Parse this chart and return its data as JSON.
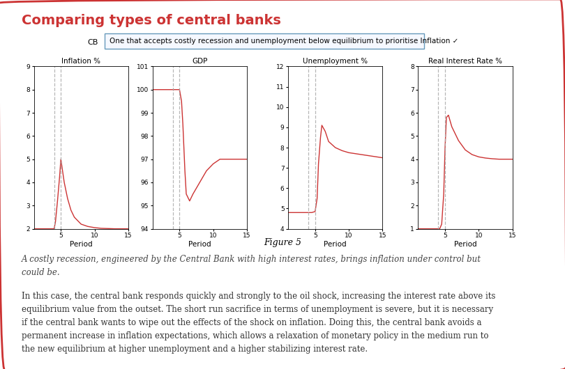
{
  "title": "Comparing types of central banks",
  "cb_label": "CB",
  "cb_dropdown_text": "One that accepts costly recession and unemployment below equilibrium to prioritise Inflation ✓",
  "figure_caption": "Figure 5",
  "italic_text": "A costly recession, engineered by the Central Bank with high interest rates, brings inflation under control but\ncould be.",
  "body_text": "In this case, the central bank responds quickly and strongly to the oil shock, increasing the interest rate above its\nequilibrium value from the outset. The short run sacrifice in terms of unemployment is severe, but it is necessary\nif the central bank wants to wipe out the effects of the shock on inflation. Doing this, the central bank avoids a\npermanent increase in inflation expectations, which allows a relaxation of monetary policy in the medium run to\nthe new equilibrium at higher unemployment and a higher stabilizing interest rate.",
  "charts": [
    {
      "title": "Inflation %",
      "xlabel": "Period",
      "ylim": [
        2,
        9
      ],
      "yticks": [
        2,
        3,
        4,
        5,
        6,
        7,
        8,
        9
      ],
      "xlim": [
        1,
        15
      ],
      "xticks": [
        5,
        10,
        15
      ],
      "vlines": [
        4,
        5
      ],
      "periods": [
        1,
        2,
        3,
        4,
        4.2,
        4.5,
        4.8,
        5.0,
        5.2,
        5.5,
        6,
        6.5,
        7,
        8,
        9,
        10,
        11,
        12,
        13,
        14,
        15
      ],
      "values": [
        2,
        2,
        2,
        2,
        2.3,
        3.2,
        4.2,
        5.0,
        4.6,
        4.0,
        3.3,
        2.8,
        2.5,
        2.2,
        2.1,
        2.05,
        2.02,
        2.01,
        2.0,
        2.0,
        2.0
      ]
    },
    {
      "title": "GDP",
      "xlabel": "Period",
      "ylim": [
        94,
        101
      ],
      "yticks": [
        94,
        95,
        96,
        97,
        98,
        99,
        100,
        101
      ],
      "xlim": [
        1,
        15
      ],
      "xticks": [
        5,
        10,
        15
      ],
      "vlines": [
        4,
        5
      ],
      "periods": [
        1,
        2,
        3,
        4,
        4.5,
        5.0,
        5.3,
        5.5,
        5.8,
        6,
        6.5,
        7,
        8,
        9,
        10,
        11,
        12,
        13,
        14,
        15
      ],
      "values": [
        100,
        100,
        100,
        100,
        100,
        100,
        99.5,
        98.5,
        96.5,
        95.5,
        95.2,
        95.5,
        96.0,
        96.5,
        96.8,
        97.0,
        97.0,
        97.0,
        97.0,
        97.0
      ]
    },
    {
      "title": "Unemployment %",
      "xlabel": "Period",
      "ylim": [
        4,
        12
      ],
      "yticks": [
        4,
        5,
        6,
        7,
        8,
        9,
        10,
        11,
        12
      ],
      "xlim": [
        1,
        15
      ],
      "xticks": [
        5,
        10,
        15
      ],
      "vlines": [
        4,
        5
      ],
      "periods": [
        1,
        2,
        3,
        4,
        4.5,
        5.0,
        5.3,
        5.5,
        5.8,
        6,
        6.5,
        7,
        8,
        9,
        10,
        11,
        12,
        13,
        14,
        15
      ],
      "values": [
        4.8,
        4.8,
        4.8,
        4.8,
        4.8,
        4.85,
        5.5,
        7.2,
        8.5,
        9.1,
        8.8,
        8.3,
        8.0,
        7.85,
        7.75,
        7.7,
        7.65,
        7.6,
        7.55,
        7.5
      ]
    },
    {
      "title": "Real Interest Rate %",
      "xlabel": "Period",
      "ylim": [
        1,
        8
      ],
      "yticks": [
        1,
        2,
        3,
        4,
        5,
        6,
        7,
        8
      ],
      "xlim": [
        1,
        15
      ],
      "xticks": [
        5,
        10,
        15
      ],
      "vlines": [
        4,
        5
      ],
      "periods": [
        1,
        2,
        3,
        4,
        4.2,
        4.5,
        4.8,
        5.0,
        5.2,
        5.5,
        6,
        7,
        8,
        9,
        10,
        11,
        12,
        13,
        14,
        15
      ],
      "values": [
        1,
        1,
        1,
        1,
        1.0,
        1.2,
        2.5,
        4.5,
        5.8,
        5.9,
        5.4,
        4.8,
        4.4,
        4.2,
        4.1,
        4.05,
        4.02,
        4.0,
        4.0,
        4.0
      ]
    }
  ],
  "line_color": "#cc3333",
  "vline_color": "#aaaaaa",
  "border_color": "#cc3333",
  "bg_color": "#ffffff",
  "title_color": "#cc3333",
  "dropdown_border": "#6699bb",
  "dropdown_bg": "#f5f8ff"
}
